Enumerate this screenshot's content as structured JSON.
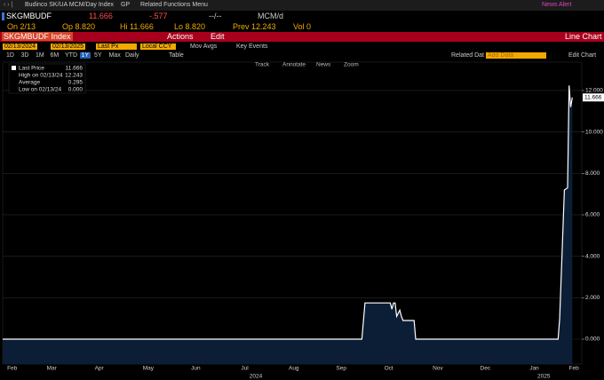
{
  "toolbar": {
    "title": "Budinco SK/UA MCM/Day Index",
    "gp": "GP",
    "menu": "Related Functions Menu",
    "alert": "News Alert"
  },
  "quote": {
    "ticker": "SKGMBUDF",
    "last": "11.666",
    "change": "-.577",
    "time": "--/--",
    "unit": "MCM/d",
    "on": "On 2/13",
    "open": "Op 8.820",
    "high": "Hi 11.666",
    "low": "Lo 8.820",
    "prev": "Prev 12.243",
    "volume": "Vol 0"
  },
  "function_bar": {
    "security": "SKGMBUDF Index",
    "actions": "Actions",
    "edit": "Edit",
    "function": "Line Chart"
  },
  "controls": {
    "start": "02/13/2024",
    "end": "02/13/2025",
    "field": "Last Px",
    "currency": "Local CCY",
    "mov_avgs": "Mov Avgs",
    "key_events": "Key Events"
  },
  "periods": [
    "1D",
    "3D",
    "1M",
    "6M",
    "YTD",
    "1Y",
    "5Y",
    "Max"
  ],
  "frequency": "Daily",
  "table": "Table",
  "related": "Related Dat",
  "add_data": "Add Data",
  "edit_chart": "Edit Chart",
  "chart_tools": [
    "Track",
    "Annotate",
    "News",
    "Zoom"
  ],
  "chart_data": {
    "type": "area",
    "stats": [
      {
        "label": "Last Price",
        "value": "11.666"
      },
      {
        "label": "High on 02/13/24",
        "value": "12.243"
      },
      {
        "label": "Average",
        "value": "0.295"
      },
      {
        "label": "Low on 02/13/24",
        "value": "0.000"
      }
    ],
    "x": [
      0,
      227,
      229,
      245,
      246,
      247,
      248,
      249,
      251,
      252,
      253,
      255,
      260,
      261,
      351,
      352,
      355,
      357,
      358,
      359,
      360
    ],
    "series": [
      {
        "name": "Last Price",
        "color": "#ffffff",
        "fill": "#0b1e36",
        "values": [
          0,
          0,
          1.75,
          1.75,
          1.45,
          1.75,
          1.75,
          1.1,
          1.4,
          1.1,
          0.9,
          0.9,
          0.9,
          0,
          0,
          1.0,
          7.2,
          7.3,
          12.243,
          11.2,
          11.666
        ]
      }
    ],
    "xlim": [
      0,
      366
    ],
    "xticks": [
      {
        "value": 6,
        "label": "Feb"
      },
      {
        "value": 31,
        "label": "Mar"
      },
      {
        "value": 61,
        "label": "Apr"
      },
      {
        "value": 92,
        "label": "May"
      },
      {
        "value": 122,
        "label": "Jun"
      },
      {
        "value": 153,
        "label": "Jul"
      },
      {
        "value": 184,
        "label": "Aug"
      },
      {
        "value": 214,
        "label": "Sep"
      },
      {
        "value": 244,
        "label": "Oct"
      },
      {
        "value": 275,
        "label": "Nov"
      },
      {
        "value": 305,
        "label": "Dec"
      },
      {
        "value": 336,
        "label": "Jan"
      },
      {
        "value": 361,
        "label": "Feb"
      }
    ],
    "year_labels": [
      {
        "value": 160,
        "label": "2024"
      },
      {
        "value": 342,
        "label": "2025"
      }
    ],
    "ylim": [
      -1.2,
      13.37
    ],
    "yticks": [
      {
        "value": 0,
        "label": "0.000"
      },
      {
        "value": 2,
        "label": "2.000"
      },
      {
        "value": 4,
        "label": "4.000"
      },
      {
        "value": 6,
        "label": "6.000"
      },
      {
        "value": 8,
        "label": "8.000"
      },
      {
        "value": 10,
        "label": "10.000"
      },
      {
        "value": 12,
        "label": "12.000"
      }
    ],
    "grid": true
  }
}
